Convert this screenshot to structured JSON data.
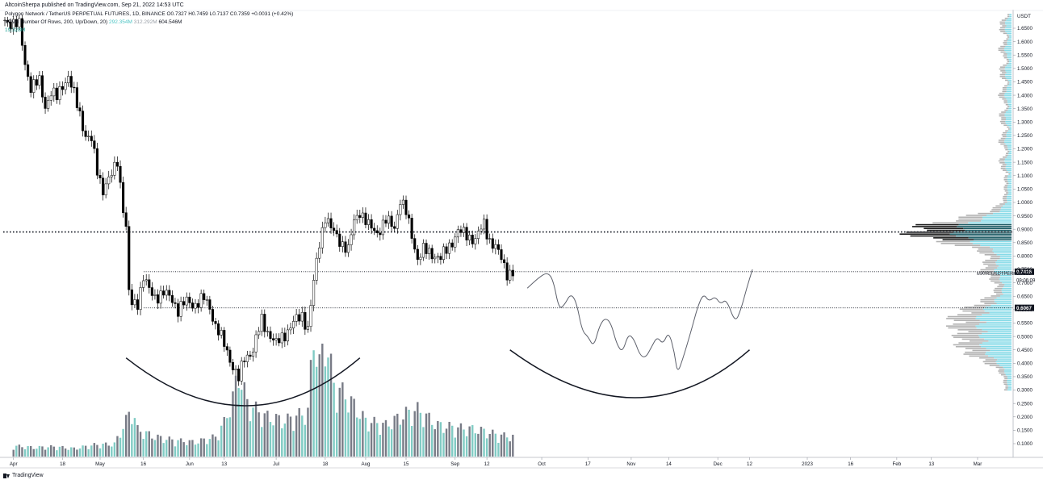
{
  "header": {
    "published": "AltcoinSherpa published on TradingView.com, Sep 21, 2022 14:53 UTC"
  },
  "legend": {
    "symbol_line": "Polygon Network / TetherUS PERPETUAL FUTURES, 1D, BINANCE  O0.7327  H0.7459  L0.7137  C0.7359  +0.0031 (+0.42%)",
    "vpvr_label": "VPVR Number Of Rows, 200, Up/Down, 20)",
    "vpvr_up": "292.354M",
    "vpvr_down": "312.292M",
    "vpvr_total": "604.546M",
    "volume_value": "19.328M"
  },
  "footer": {
    "brand": "TradingView"
  },
  "colors": {
    "up": "#ffffff",
    "down": "#000000",
    "vol_up": "#80cbc4",
    "vol_down": "#787b86",
    "vp_up": "#7fd8e6",
    "vp_down": "#a8a8a8"
  },
  "chart_data": {
    "type": "candlestick",
    "symbol": "MATICUSDTPERP",
    "y_unit": "USDT",
    "y_axis_ticks": [
      "1.6500",
      "1.6000",
      "1.5500",
      "1.5000",
      "1.4500",
      "1.4000",
      "1.3500",
      "1.3000",
      "1.2500",
      "1.2000",
      "1.1500",
      "1.1000",
      "1.0500",
      "1.0000",
      "0.9500",
      "0.9000",
      "0.8500",
      "0.8000",
      "0.7500",
      "0.7000",
      "0.6500",
      "0.6000",
      "0.5500",
      "0.5000",
      "0.4500",
      "0.4000",
      "0.3500",
      "0.3000",
      "0.2500",
      "0.2000",
      "0.1500",
      "0.1000"
    ],
    "y_tick_values": [
      1.65,
      1.6,
      1.55,
      1.5,
      1.45,
      1.4,
      1.35,
      1.3,
      1.25,
      1.2,
      1.15,
      1.1,
      1.05,
      1.0,
      0.95,
      0.9,
      0.85,
      0.8,
      0.75,
      0.7,
      0.65,
      0.6,
      0.55,
      0.5,
      0.45,
      0.4,
      0.35,
      0.3,
      0.25,
      0.2,
      0.15,
      0.1
    ],
    "x_axis_ticks": [
      {
        "label": "Apr",
        "date": "2022-04-01"
      },
      {
        "label": "18",
        "date": "2022-04-18"
      },
      {
        "label": "May",
        "date": "2022-05-01"
      },
      {
        "label": "16",
        "date": "2022-05-16"
      },
      {
        "label": "Jun",
        "date": "2022-06-01"
      },
      {
        "label": "13",
        "date": "2022-06-13"
      },
      {
        "label": "Jul",
        "date": "2022-07-01"
      },
      {
        "label": "18",
        "date": "2022-07-18"
      },
      {
        "label": "Aug",
        "date": "2022-08-01"
      },
      {
        "label": "15",
        "date": "2022-08-15"
      },
      {
        "label": "Sep",
        "date": "2022-09-01"
      },
      {
        "label": "12",
        "date": "2022-09-12"
      },
      {
        "label": "Oct",
        "date": "2022-10-01"
      },
      {
        "label": "17",
        "date": "2022-10-17"
      },
      {
        "label": "Nov",
        "date": "2022-11-01"
      },
      {
        "label": "14",
        "date": "2022-11-14"
      },
      {
        "label": "Dec",
        "date": "2022-12-01"
      },
      {
        "label": "12",
        "date": "2022-12-12"
      },
      {
        "label": "2023",
        "date": "2023-01-01"
      },
      {
        "label": "16",
        "date": "2023-01-16"
      },
      {
        "label": "Feb",
        "date": "2023-02-01"
      },
      {
        "label": "13",
        "date": "2023-02-13"
      },
      {
        "label": "Mar",
        "date": "2023-03-01"
      }
    ],
    "x_range": [
      "2022-03-29",
      "2023-03-08"
    ],
    "y_range": [
      0.06,
      1.71
    ],
    "closes": [
      {
        "date": "2022-03-29",
        "close": 1.68
      },
      {
        "date": "2022-04-03",
        "close": 1.66
      },
      {
        "date": "2022-04-05",
        "close": 1.52
      },
      {
        "date": "2022-04-07",
        "close": 1.43
      },
      {
        "date": "2022-04-10",
        "close": 1.45
      },
      {
        "date": "2022-04-12",
        "close": 1.36
      },
      {
        "date": "2022-04-14",
        "close": 1.41
      },
      {
        "date": "2022-04-16",
        "close": 1.39
      },
      {
        "date": "2022-04-18",
        "close": 1.44
      },
      {
        "date": "2022-04-20",
        "close": 1.47
      },
      {
        "date": "2022-04-22",
        "close": 1.4
      },
      {
        "date": "2022-04-24",
        "close": 1.33
      },
      {
        "date": "2022-04-26",
        "close": 1.25
      },
      {
        "date": "2022-04-28",
        "close": 1.23
      },
      {
        "date": "2022-04-30",
        "close": 1.12
      },
      {
        "date": "2022-05-02",
        "close": 1.05
      },
      {
        "date": "2022-05-05",
        "close": 1.1
      },
      {
        "date": "2022-05-07",
        "close": 1.16
      },
      {
        "date": "2022-05-09",
        "close": 0.98
      },
      {
        "date": "2022-05-10",
        "close": 0.9
      },
      {
        "date": "2022-05-11",
        "close": 0.66
      },
      {
        "date": "2022-05-12",
        "close": 0.62
      },
      {
        "date": "2022-05-14",
        "close": 0.63
      },
      {
        "date": "2022-05-16",
        "close": 0.72
      },
      {
        "date": "2022-05-18",
        "close": 0.67
      },
      {
        "date": "2022-05-20",
        "close": 0.65
      },
      {
        "date": "2022-05-23",
        "close": 0.66
      },
      {
        "date": "2022-05-26",
        "close": 0.64
      },
      {
        "date": "2022-05-28",
        "close": 0.6
      },
      {
        "date": "2022-05-31",
        "close": 0.63
      },
      {
        "date": "2022-06-03",
        "close": 0.62
      },
      {
        "date": "2022-06-06",
        "close": 0.64
      },
      {
        "date": "2022-06-08",
        "close": 0.61
      },
      {
        "date": "2022-06-10",
        "close": 0.54
      },
      {
        "date": "2022-06-13",
        "close": 0.47
      },
      {
        "date": "2022-06-16",
        "close": 0.39
      },
      {
        "date": "2022-06-18",
        "close": 0.34
      },
      {
        "date": "2022-06-20",
        "close": 0.42
      },
      {
        "date": "2022-06-23",
        "close": 0.45
      },
      {
        "date": "2022-06-26",
        "close": 0.56
      },
      {
        "date": "2022-06-28",
        "close": 0.52
      },
      {
        "date": "2022-07-01",
        "close": 0.47
      },
      {
        "date": "2022-07-04",
        "close": 0.51
      },
      {
        "date": "2022-07-07",
        "close": 0.55
      },
      {
        "date": "2022-07-10",
        "close": 0.58
      },
      {
        "date": "2022-07-12",
        "close": 0.53
      },
      {
        "date": "2022-07-14",
        "close": 0.7
      },
      {
        "date": "2022-07-16",
        "close": 0.85
      },
      {
        "date": "2022-07-18",
        "close": 0.95
      },
      {
        "date": "2022-07-20",
        "close": 0.9
      },
      {
        "date": "2022-07-23",
        "close": 0.86
      },
      {
        "date": "2022-07-26",
        "close": 0.82
      },
      {
        "date": "2022-07-28",
        "close": 0.93
      },
      {
        "date": "2022-07-30",
        "close": 0.97
      },
      {
        "date": "2022-08-02",
        "close": 0.91
      },
      {
        "date": "2022-08-05",
        "close": 0.89
      },
      {
        "date": "2022-08-08",
        "close": 0.93
      },
      {
        "date": "2022-08-11",
        "close": 0.91
      },
      {
        "date": "2022-08-13",
        "close": 1.01
      },
      {
        "date": "2022-08-15",
        "close": 0.96
      },
      {
        "date": "2022-08-17",
        "close": 0.88
      },
      {
        "date": "2022-08-19",
        "close": 0.79
      },
      {
        "date": "2022-08-21",
        "close": 0.82
      },
      {
        "date": "2022-08-24",
        "close": 0.81
      },
      {
        "date": "2022-08-27",
        "close": 0.79
      },
      {
        "date": "2022-08-30",
        "close": 0.84
      },
      {
        "date": "2022-09-02",
        "close": 0.89
      },
      {
        "date": "2022-09-05",
        "close": 0.88
      },
      {
        "date": "2022-09-08",
        "close": 0.86
      },
      {
        "date": "2022-09-11",
        "close": 0.92
      },
      {
        "date": "2022-09-13",
        "close": 0.86
      },
      {
        "date": "2022-09-15",
        "close": 0.83
      },
      {
        "date": "2022-09-17",
        "close": 0.79
      },
      {
        "date": "2022-09-19",
        "close": 0.74
      },
      {
        "date": "2022-09-21",
        "close": 0.7359
      }
    ],
    "volume": [
      {
        "date": "2022-04-01",
        "value": 12
      },
      {
        "date": "2022-04-08",
        "value": 10
      },
      {
        "date": "2022-04-15",
        "value": 11
      },
      {
        "date": "2022-04-22",
        "value": 9
      },
      {
        "date": "2022-04-29",
        "value": 13
      },
      {
        "date": "2022-05-06",
        "value": 14
      },
      {
        "date": "2022-05-10",
        "value": 40
      },
      {
        "date": "2022-05-12",
        "value": 55
      },
      {
        "date": "2022-05-14",
        "value": 30
      },
      {
        "date": "2022-05-20",
        "value": 22
      },
      {
        "date": "2022-05-27",
        "value": 18
      },
      {
        "date": "2022-06-03",
        "value": 16
      },
      {
        "date": "2022-06-10",
        "value": 22
      },
      {
        "date": "2022-06-13",
        "value": 38
      },
      {
        "date": "2022-06-16",
        "value": 65
      },
      {
        "date": "2022-06-18",
        "value": 95
      },
      {
        "date": "2022-06-21",
        "value": 60
      },
      {
        "date": "2022-06-27",
        "value": 45
      },
      {
        "date": "2022-07-04",
        "value": 40
      },
      {
        "date": "2022-07-12",
        "value": 50
      },
      {
        "date": "2022-07-14",
        "value": 138
      },
      {
        "date": "2022-07-16",
        "value": 100
      },
      {
        "date": "2022-07-18",
        "value": 135
      },
      {
        "date": "2022-07-21",
        "value": 80
      },
      {
        "date": "2022-07-26",
        "value": 65
      },
      {
        "date": "2022-08-01",
        "value": 40
      },
      {
        "date": "2022-08-08",
        "value": 35
      },
      {
        "date": "2022-08-15",
        "value": 48
      },
      {
        "date": "2022-08-19",
        "value": 52
      },
      {
        "date": "2022-08-26",
        "value": 35
      },
      {
        "date": "2022-09-02",
        "value": 32
      },
      {
        "date": "2022-09-09",
        "value": 30
      },
      {
        "date": "2022-09-16",
        "value": 24
      },
      {
        "date": "2022-09-21",
        "value": 22
      }
    ],
    "horizontal_levels": [
      {
        "price": 0.89,
        "style": "dotted-bold",
        "label": ""
      },
      {
        "price": 0.7416,
        "style": "dotted",
        "label": "0.7416"
      },
      {
        "price": 0.6067,
        "style": "dotted",
        "label": "0.6067"
      }
    ],
    "price_labels": [
      {
        "price": 0.7416,
        "text": "0.7416",
        "style": "dark"
      },
      {
        "price": 0.7359,
        "text": "0.7359",
        "style": "plain"
      },
      {
        "price": 0.71,
        "text": "09:06:09",
        "style": "plain"
      },
      {
        "price": 0.6067,
        "text": "0.6067",
        "style": "dark"
      }
    ],
    "symbol_tag": "MATICUSDTPERP",
    "projection_path": [
      {
        "date": "2022-09-26",
        "price": 0.68
      },
      {
        "date": "2022-09-30",
        "price": 0.72
      },
      {
        "date": "2022-10-03",
        "price": 0.74
      },
      {
        "date": "2022-10-05",
        "price": 0.71
      },
      {
        "date": "2022-10-07",
        "price": 0.6
      },
      {
        "date": "2022-10-09",
        "price": 0.62
      },
      {
        "date": "2022-10-11",
        "price": 0.66
      },
      {
        "date": "2022-10-13",
        "price": 0.63
      },
      {
        "date": "2022-10-15",
        "price": 0.52
      },
      {
        "date": "2022-10-17",
        "price": 0.5
      },
      {
        "date": "2022-10-19",
        "price": 0.46
      },
      {
        "date": "2022-10-21",
        "price": 0.54
      },
      {
        "date": "2022-10-23",
        "price": 0.57
      },
      {
        "date": "2022-10-25",
        "price": 0.55
      },
      {
        "date": "2022-10-27",
        "price": 0.47
      },
      {
        "date": "2022-10-29",
        "price": 0.44
      },
      {
        "date": "2022-10-31",
        "price": 0.51
      },
      {
        "date": "2022-11-02",
        "price": 0.49
      },
      {
        "date": "2022-11-04",
        "price": 0.43
      },
      {
        "date": "2022-11-06",
        "price": 0.42
      },
      {
        "date": "2022-11-08",
        "price": 0.46
      },
      {
        "date": "2022-11-10",
        "price": 0.5
      },
      {
        "date": "2022-11-12",
        "price": 0.47
      },
      {
        "date": "2022-11-14",
        "price": 0.52
      },
      {
        "date": "2022-11-16",
        "price": 0.44
      },
      {
        "date": "2022-11-17",
        "price": 0.36
      },
      {
        "date": "2022-11-19",
        "price": 0.42
      },
      {
        "date": "2022-11-22",
        "price": 0.53
      },
      {
        "date": "2022-11-24",
        "price": 0.61
      },
      {
        "date": "2022-11-26",
        "price": 0.66
      },
      {
        "date": "2022-11-28",
        "price": 0.63
      },
      {
        "date": "2022-11-30",
        "price": 0.65
      },
      {
        "date": "2022-12-02",
        "price": 0.62
      },
      {
        "date": "2022-12-04",
        "price": 0.64
      },
      {
        "date": "2022-12-07",
        "price": 0.55
      },
      {
        "date": "2022-12-09",
        "price": 0.6
      },
      {
        "date": "2022-12-11",
        "price": 0.68
      },
      {
        "date": "2022-12-13",
        "price": 0.75
      }
    ],
    "cup_arcs": [
      {
        "from": "2022-05-10",
        "bottom": "2022-06-21",
        "to": "2022-07-30",
        "top_price": 0.42,
        "bottom_price": 0.25
      },
      {
        "from": "2022-09-20",
        "bottom": "2022-11-04",
        "to": "2022-12-12",
        "top_price": 0.45,
        "bottom_price": 0.28
      }
    ],
    "volume_profile_note": "VPVR horizontal histogram on right side, peak near 0.88-0.90"
  }
}
